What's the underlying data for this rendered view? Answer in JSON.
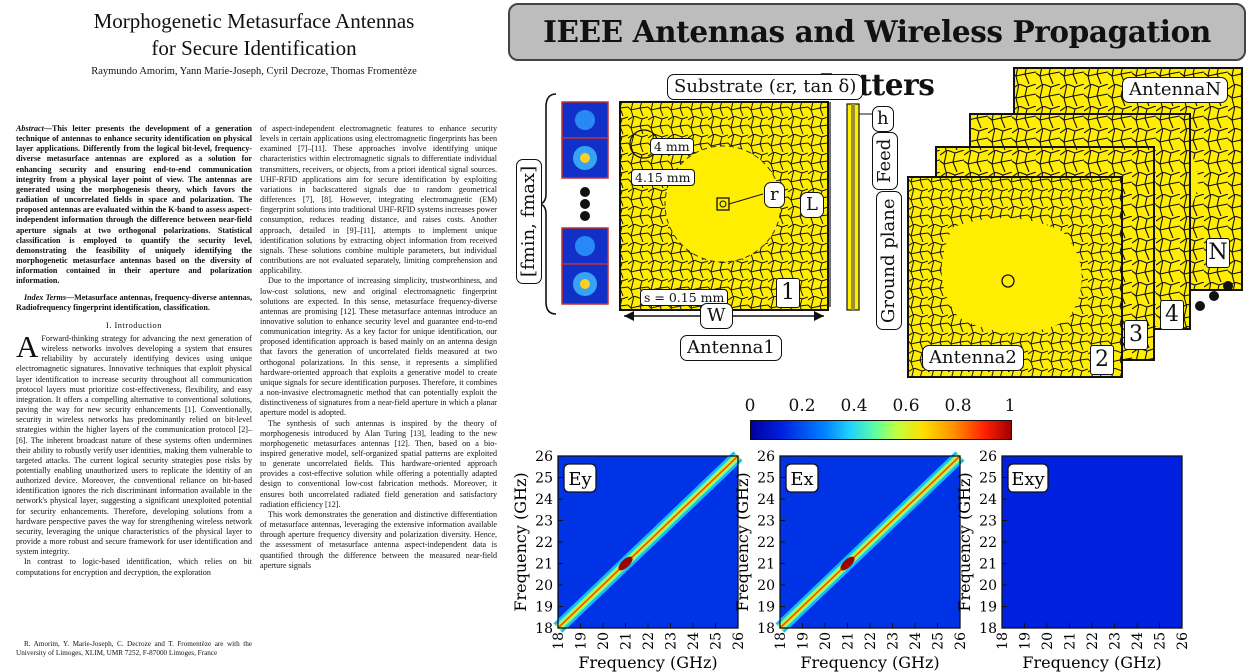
{
  "paper": {
    "title_line1": "Morphogenetic Metasurface Antennas",
    "title_line2": "for Secure Identification",
    "authors": "Raymundo Amorim, Yann Marie-Joseph, Cyril Decroze, Thomas Fromentèze",
    "abstract_label": "Abstract",
    "abstract_text": "—This letter presents the development of a generation technique of antennas to enhance security identification on physical layer applications. Differently from the logical bit-level, frequency-diverse metasurface antennas are explored as a solution for enhancing security and ensuring end-to-end communication integrity from a physical layer point of view. The antennas are generated using the morphogenesis theory, which favors the radiation of uncorrelated fields in space and polarization. The proposed antennas are evaluated within the K-band to assess aspect-independent information through the difference between near-field aperture signals at two orthogonal polarizations. Statistical classification is employed to quantify the security level, demonstrating the feasibility of uniquely identifying the morphogenetic metasurface antennas based on the diversity of information contained in their aperture and polarization information.",
    "index_label": "Index Terms",
    "index_text": "—Metasurface antennas, frequency-diverse antennas, Radiofrequency fingerprint identification, classification.",
    "section_title": "I. Introduction",
    "intro_dropcap": "A",
    "intro_p1": "Forward-thinking strategy for advancing the next generation of wireless networks involves developing a system that ensures reliability by accurately identifying devices using unique electromagnetic signatures. Innovative techniques that exploit physical layer identification to increase security throughout all communication protocol layers must prioritize cost-effectiveness, flexibility, and easy integration. It offers a compelling alternative to conventional solutions, paving the way for new security enhancements [1]. Conventionally, security in wireless networks has predominantly relied on bit-level strategies within the higher layers of the communication protocol [2]–[6]. The inherent broadcast nature of these systems often undermines their ability to robustly verify user identities, making them vulnerable to targeted attacks. The current logical security strategies pose risks by potentially enabling unauthorized users to replicate the identity of an authorized device. Moreover, the conventional reliance on bit-based identification ignores the rich discriminant information available in the network's physical layer, suggesting a significant unexploited potential for security enhancements. Therefore, developing solutions from a hardware perspective paves the way for strengthening wireless network security, leveraging the unique characteristics of the physical layer to provide a more robust and secure framework for user identification and system integrity.",
    "intro_p2": "In contrast to logic-based identification, which relies on bit computations for encryption and decryption, the exploration",
    "footnote": "R. Amorim, Y. Marie-Joseph, C. Decroze and T. Fromentèze are with the University of Limoges, XLIM, UMR 7252, F-87000 Limoges, France",
    "col2_p1": "of aspect-independent electromagnetic features to enhance security levels in certain applications using electromagnetic fingerprints has been examined [7]–[11]. These approaches involve identifying unique characteristics within electromagnetic signals to differentiate individual transmitters, receivers, or objects, from a priori identical signal sources. UHF-RFID applications aim for secure identification by exploiting variations in backscattered signals due to random geometrical differences [7], [8]. However, integrating electromagnetic (EM) fingerprint solutions into traditional UHF-RFID systems increases power consumption, reduces reading distance, and raises costs. Another approach, detailed in [9]–[11], attempts to implement unique identification solutions by extracting object information from received signals. These solutions combine multiple parameters, but individual contributions are not evaluated separately, limiting comprehension and applicability.",
    "col2_p2": "Due to the importance of increasing simplicity, trustworthiness, and low-cost solutions, new and original electromagnetic fingerprint solutions are expected. In this sense, metasurface frequency-diverse antennas are promising [12]. These metasurface antennas introduce an innovative solution to enhance security level and guarantee end-to-end communication integrity. As a key factor for unique identification, our proposed identification approach is based mainly on an antenna design that favors the generation of uncorrelated fields measured at two orthogonal polarizations. In this sense, it represents a simplified hardware-oriented approach that exploits a generative model to create unique signals for secure identification purposes. Therefore, it combines a non-invasive electromagnetic method that can potentially exploit the distinctiveness of signatures from a near-field aperture in which a planar aperture model is adopted.",
    "col2_p3": "The synthesis of such antennas is inspired by the theory of morphogenesis introduced by Alan Turing [13], leading to the new morphogenetic metasurfaces antennas [12]. Then, based on a bio-inspired generative model, self-organized spatial patterns are exploited to generate uncorrelated fields. This hardware-oriented approach provides a cost-effective solution while offering a potentially adapted design to conventional low-cost fabrication methods. Moreover, it ensures both uncorrelated radiated field generation and satisfactory radiation efficiency [12].",
    "col2_p4": "This work demonstrates the generation and distinctive differentiation of metasurface antennas, leveraging the extensive information available through aperture frequency diversity and polarization diversity. Hence, the assessment of metasurface antenna aspect-independent data is quantified through the difference between the measured near-field aperture signals"
  },
  "banner": {
    "title": "IEEE Antennas and Wireless Propagation Letters"
  },
  "figure": {
    "substrate_label": "Substrate (εr, tan δ)",
    "h_label": "h",
    "feed_label": "Feed",
    "ground_label": "Ground plane",
    "fmin_label": "[fmin, fmax]",
    "dim_4mm": "4 mm",
    "dim_415mm": "4.15 mm",
    "r_label": "r",
    "L_label": "L",
    "W_label": "W",
    "s_label": "s = 0.15 mm",
    "antenna1_label": "Antenna1",
    "antenna2_label": "Antenna2",
    "antennaN_label": "AntennaN",
    "num_1": "1",
    "num_2": "2",
    "num_3": "3",
    "num_4": "4",
    "num_N": "N",
    "colors": {
      "patch": "#ffee00",
      "outline": "#111111",
      "cmap_low": "#0000a0",
      "cmap_high": "#a00000"
    }
  },
  "chart_data": [
    {
      "type": "heatmap",
      "panel_label": "Ey",
      "xlabel": "Frequency (GHz)",
      "ylabel": "Frequency (GHz)",
      "xlim": [
        18,
        26
      ],
      "ylim": [
        18,
        26
      ],
      "x_ticks": [
        18,
        19,
        20,
        21,
        22,
        23,
        24,
        25,
        26
      ],
      "y_ticks": [
        18,
        19,
        20,
        21,
        22,
        23,
        24,
        25,
        26
      ],
      "diagonal_peak_value": 0.85,
      "off_diagonal_value": 0.15
    },
    {
      "type": "heatmap",
      "panel_label": "Ex",
      "xlabel": "Frequency (GHz)",
      "ylabel": "Frequency (GHz)",
      "xlim": [
        18,
        26
      ],
      "ylim": [
        18,
        26
      ],
      "x_ticks": [
        18,
        19,
        20,
        21,
        22,
        23,
        24,
        25,
        26
      ],
      "y_ticks": [
        18,
        19,
        20,
        21,
        22,
        23,
        24,
        25,
        26
      ],
      "diagonal_peak_value": 0.85,
      "off_diagonal_value": 0.15
    },
    {
      "type": "heatmap",
      "panel_label": "Exy",
      "xlabel": "Frequency (GHz)",
      "ylabel": "Frequency (GHz)",
      "xlim": [
        18,
        26
      ],
      "ylim": [
        18,
        26
      ],
      "x_ticks": [
        18,
        19,
        20,
        21,
        22,
        23,
        24,
        25,
        26
      ],
      "y_ticks": [
        18,
        19,
        20,
        21,
        22,
        23,
        24,
        25,
        26
      ],
      "diagonal_peak_value": 0.15,
      "off_diagonal_value": 0.12
    }
  ],
  "colorbar": {
    "ticks": [
      "0",
      "0.2",
      "0.4",
      "0.6",
      "0.8",
      "1"
    ],
    "range": [
      0,
      1
    ]
  }
}
